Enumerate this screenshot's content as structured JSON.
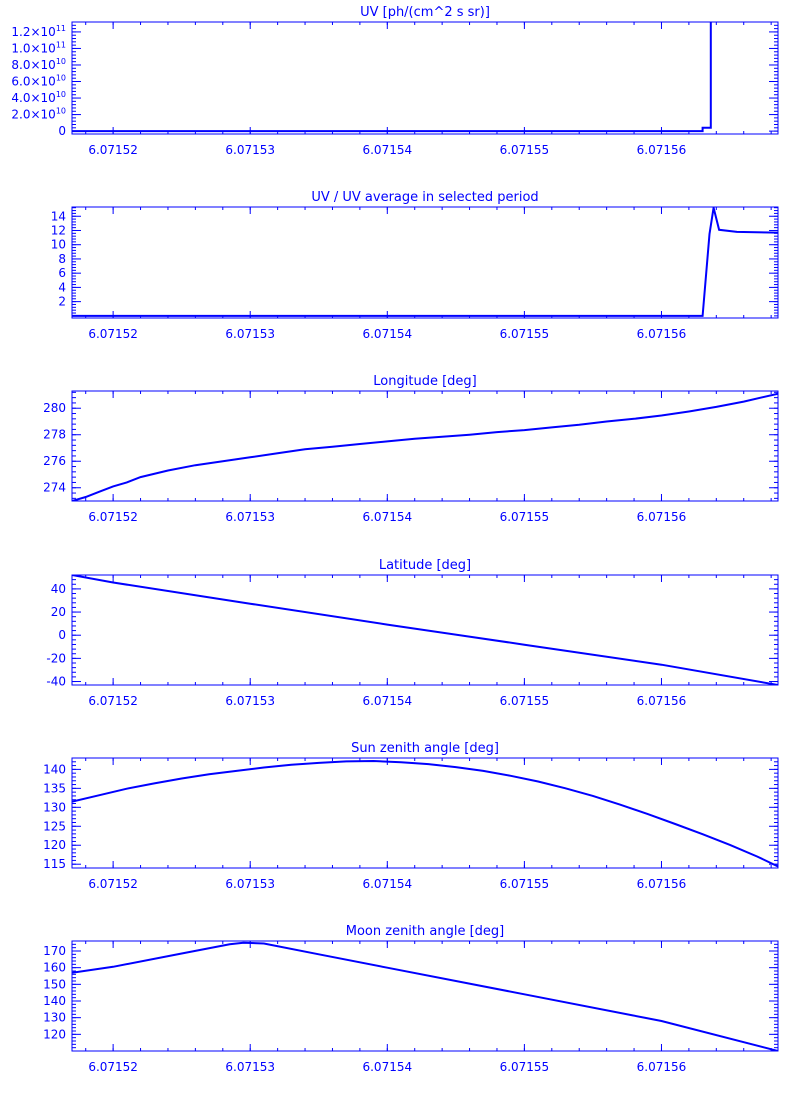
{
  "style": {
    "line_color": "#0000ff",
    "background": "#ffffff"
  },
  "chart_data": [
    {
      "type": "line",
      "title": "UV [ph/(cm^2 s sr)]",
      "xlim": [
        6.071517,
        6.0715685
      ],
      "ylim": [
        -3500000000.0,
        132000000000.0
      ],
      "xticks": [
        6.07152,
        6.07153,
        6.07154,
        6.07155,
        6.07156
      ],
      "xtick_labels": [
        "6.07152",
        "6.07153",
        "6.07154",
        "6.07155",
        "6.07156"
      ],
      "yticks": [
        0,
        20000000000.0,
        40000000000.0,
        60000000000.0,
        80000000000.0,
        100000000000.0,
        120000000000.0
      ],
      "ytick_labels": [
        {
          "mant": "0",
          "exp": ""
        },
        {
          "mant": "2.0×10",
          "exp": "10"
        },
        {
          "mant": "4.0×10",
          "exp": "10"
        },
        {
          "mant": "6.0×10",
          "exp": "10"
        },
        {
          "mant": "8.0×10",
          "exp": "10"
        },
        {
          "mant": "1.0×10",
          "exp": "11"
        },
        {
          "mant": "1.2×10",
          "exp": "11"
        }
      ],
      "x": [
        6.071517,
        6.071563,
        6.071563,
        6.0715636,
        6.0715636,
        6.0715685
      ],
      "y": [
        0,
        0,
        4000000000.0,
        4000000000.0,
        134000000000.0,
        134000000000.0
      ]
    },
    {
      "type": "line",
      "title": "UV / UV average in selected period",
      "xlim": [
        6.071517,
        6.0715685
      ],
      "ylim": [
        -0.3,
        15.3
      ],
      "xticks": [
        6.07152,
        6.07153,
        6.07154,
        6.07155,
        6.07156
      ],
      "xtick_labels": [
        "6.07152",
        "6.07153",
        "6.07154",
        "6.07155",
        "6.07156"
      ],
      "yticks": [
        2,
        4,
        6,
        8,
        10,
        12,
        14
      ],
      "ytick_labels": [
        "2",
        "4",
        "6",
        "8",
        "10",
        "12",
        "14"
      ],
      "x": [
        6.071517,
        6.071563,
        6.0715635,
        6.0715638,
        6.0715642,
        6.0715655,
        6.0715685
      ],
      "y": [
        0,
        0,
        11.5,
        15.2,
        12.1,
        11.8,
        11.7
      ]
    },
    {
      "type": "line",
      "title": "Longitude [deg]",
      "xlim": [
        6.071517,
        6.0715685
      ],
      "ylim": [
        273.0,
        281.3
      ],
      "xticks": [
        6.07152,
        6.07153,
        6.07154,
        6.07155,
        6.07156
      ],
      "xtick_labels": [
        "6.07152",
        "6.07153",
        "6.07154",
        "6.07155",
        "6.07156"
      ],
      "yticks": [
        274,
        276,
        278,
        280
      ],
      "ytick_labels": [
        "274",
        "276",
        "278",
        "280"
      ],
      "x": [
        6.071517,
        6.071518,
        6.071519,
        6.07152,
        6.071521,
        6.071522,
        6.071524,
        6.071526,
        6.071528,
        6.07153,
        6.071532,
        6.071534,
        6.071536,
        6.071538,
        6.07154,
        6.071542,
        6.071544,
        6.071546,
        6.071548,
        6.07155,
        6.071552,
        6.071554,
        6.071556,
        6.071558,
        6.07156,
        6.071562,
        6.071564,
        6.071566,
        6.0715685
      ],
      "y": [
        273.0,
        273.3,
        273.7,
        274.1,
        274.4,
        274.8,
        275.3,
        275.7,
        276.0,
        276.3,
        276.6,
        276.9,
        277.1,
        277.3,
        277.5,
        277.7,
        277.85,
        278.0,
        278.2,
        278.35,
        278.55,
        278.75,
        279.0,
        279.2,
        279.45,
        279.75,
        280.1,
        280.5,
        281.1
      ]
    },
    {
      "type": "line",
      "title": "Latitude [deg]",
      "xlim": [
        6.071517,
        6.0715685
      ],
      "ylim": [
        -43,
        52
      ],
      "xticks": [
        6.07152,
        6.07153,
        6.07154,
        6.07155,
        6.07156
      ],
      "xtick_labels": [
        "6.07152",
        "6.07153",
        "6.07154",
        "6.07155",
        "6.07156"
      ],
      "yticks": [
        -40,
        -20,
        0,
        20,
        40
      ],
      "ytick_labels": [
        "-40",
        "-20",
        "0",
        "20",
        "40"
      ],
      "x": [
        6.071517,
        6.07152,
        6.07153,
        6.07154,
        6.07155,
        6.07156,
        6.0715685
      ],
      "y": [
        52,
        45.5,
        27.2,
        9.2,
        -8.2,
        -25.5,
        -43
      ]
    },
    {
      "type": "line",
      "title": "Sun zenith angle [deg]",
      "xlim": [
        6.071517,
        6.0715685
      ],
      "ylim": [
        114,
        143
      ],
      "xticks": [
        6.07152,
        6.07153,
        6.07154,
        6.07155,
        6.07156
      ],
      "xtick_labels": [
        "6.07152",
        "6.07153",
        "6.07154",
        "6.07155",
        "6.07156"
      ],
      "yticks": [
        115,
        120,
        125,
        130,
        135,
        140
      ],
      "ytick_labels": [
        "115",
        "120",
        "125",
        "130",
        "135",
        "140"
      ],
      "x": [
        6.071517,
        6.071519,
        6.071521,
        6.071523,
        6.071525,
        6.071527,
        6.071529,
        6.071531,
        6.071533,
        6.071535,
        6.071537,
        6.071539,
        6.071541,
        6.071543,
        6.071545,
        6.071547,
        6.071549,
        6.071551,
        6.071553,
        6.071555,
        6.071557,
        6.071559,
        6.071561,
        6.071563,
        6.071565,
        6.071567,
        6.0715685
      ],
      "y": [
        131.5,
        133.2,
        134.9,
        136.3,
        137.6,
        138.7,
        139.6,
        140.5,
        141.2,
        141.7,
        142.1,
        142.2,
        141.9,
        141.4,
        140.6,
        139.6,
        138.3,
        136.8,
        135.0,
        133.0,
        130.7,
        128.2,
        125.6,
        122.9,
        120.1,
        117.0,
        114.4
      ]
    },
    {
      "type": "line",
      "title": "Moon zenith angle [deg]",
      "xlim": [
        6.071517,
        6.0715685
      ],
      "ylim": [
        110,
        176
      ],
      "xticks": [
        6.07152,
        6.07153,
        6.07154,
        6.07155,
        6.07156
      ],
      "xtick_labels": [
        "6.07152",
        "6.07153",
        "6.07154",
        "6.07155",
        "6.07156"
      ],
      "yticks": [
        120,
        130,
        140,
        150,
        160,
        170
      ],
      "ytick_labels": [
        "120",
        "130",
        "140",
        "150",
        "160",
        "170"
      ],
      "x": [
        6.071517,
        6.07152,
        6.071525,
        6.0715285,
        6.0715295,
        6.071531,
        6.071535,
        6.07154,
        6.07155,
        6.07156,
        6.0715685
      ],
      "y": [
        157,
        160.5,
        168.5,
        174,
        175,
        174.5,
        168,
        160,
        144,
        128,
        110
      ]
    }
  ]
}
